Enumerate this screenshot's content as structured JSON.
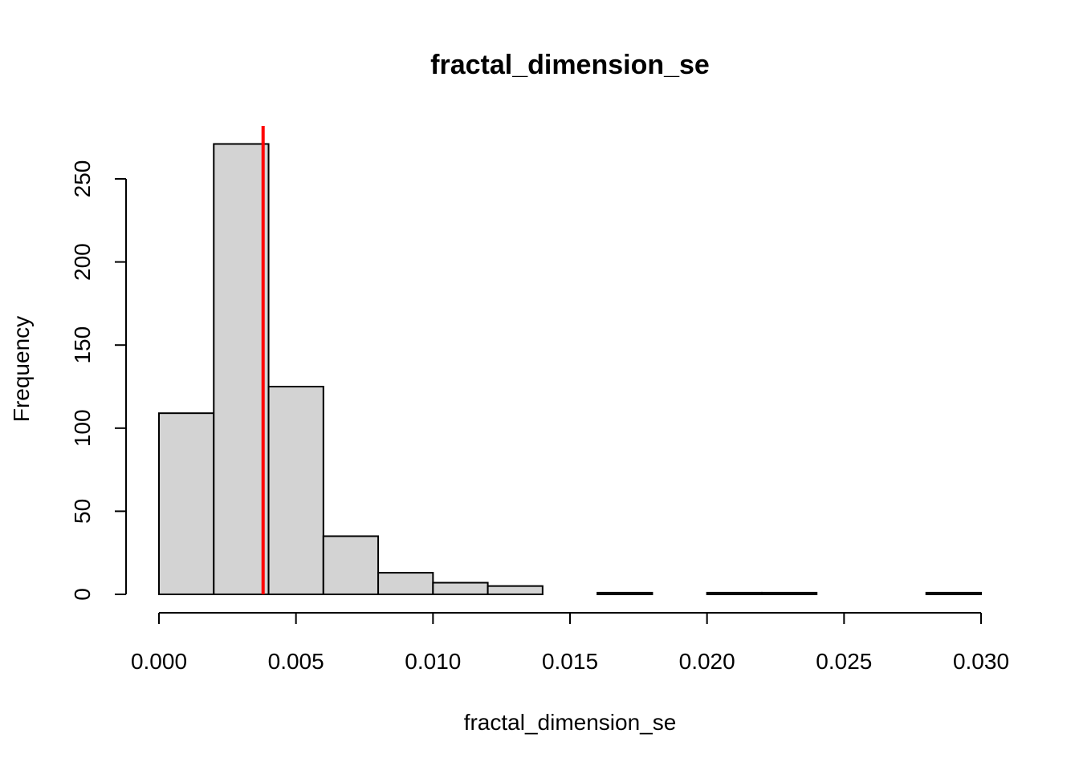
{
  "chart_data": {
    "type": "bar",
    "title": "fractal_dimension_se",
    "xlabel": "fractal_dimension_se",
    "ylabel": "Frequency",
    "bin_edges": [
      0.0,
      0.002,
      0.004,
      0.006,
      0.008,
      0.01,
      0.012,
      0.014,
      0.016,
      0.018,
      0.02,
      0.022,
      0.024,
      0.026,
      0.028,
      0.03
    ],
    "values": [
      109,
      271,
      125,
      35,
      13,
      7,
      5,
      0,
      1,
      0,
      1,
      1,
      0,
      0,
      1
    ],
    "xlim": [
      0.0,
      0.03
    ],
    "ylim": [
      0,
      250
    ],
    "x_ticks": [
      "0.000",
      "0.005",
      "0.010",
      "0.015",
      "0.020",
      "0.025",
      "0.030"
    ],
    "y_ticks": [
      "0",
      "50",
      "100",
      "150",
      "200",
      "250"
    ],
    "reference_line": {
      "x": 0.0038,
      "color": "#ff0000"
    },
    "bar_color": "#d3d3d3",
    "grid": false,
    "legend": "none"
  }
}
